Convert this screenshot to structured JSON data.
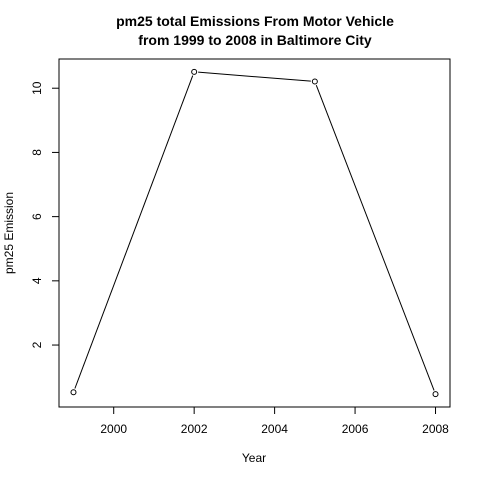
{
  "chart_data": {
    "type": "line",
    "title_line1": "pm25 total Emissions From Motor Vehicle",
    "title_line2": "from 1999 to 2008 in Baltimore City",
    "xlabel": "Year",
    "ylabel": "pm25 Emission",
    "x": [
      1999,
      2002,
      2005,
      2008
    ],
    "series": [
      {
        "values": [
          0.53,
          10.51,
          10.21,
          0.47
        ]
      }
    ],
    "xlim": [
      1998.64,
      2008.36
    ],
    "ylim": [
      0.07,
      10.91
    ],
    "xticks": [
      "2000",
      "2002",
      "2004",
      "2006",
      "2008"
    ],
    "yticks": [
      "2",
      "4",
      "6",
      "8",
      "10"
    ],
    "line_color": "#000000",
    "marker": "open-circle",
    "grid": false,
    "legend": "none"
  }
}
